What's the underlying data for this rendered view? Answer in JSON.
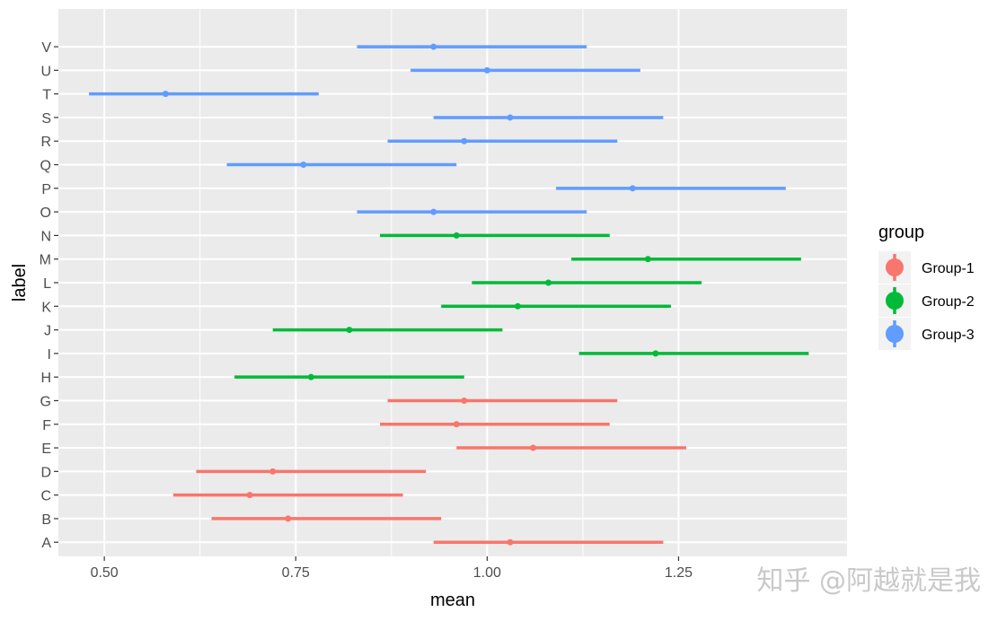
{
  "chart_data": {
    "type": "errorbar",
    "xlabel": "mean",
    "ylabel": "label",
    "xlim": [
      0.44,
      1.47
    ],
    "xticks": [
      0.5,
      0.75,
      1.0,
      1.25
    ],
    "xtick_labels": [
      "0.50",
      "0.75",
      "1.00",
      "1.25"
    ],
    "grid": true,
    "legend": {
      "title": "group",
      "position": "right",
      "entries": [
        {
          "name": "Group-1",
          "color": "#F8766D"
        },
        {
          "name": "Group-2",
          "color": "#00BA38"
        },
        {
          "name": "Group-3",
          "color": "#619CFF"
        }
      ]
    },
    "categories": [
      "A",
      "B",
      "C",
      "D",
      "E",
      "F",
      "G",
      "H",
      "I",
      "J",
      "K",
      "L",
      "M",
      "N",
      "O",
      "P",
      "Q",
      "R",
      "S",
      "T",
      "U",
      "V"
    ],
    "points": [
      {
        "label": "A",
        "group": "Group-1",
        "mean": 1.03,
        "lower": 0.93,
        "upper": 1.23
      },
      {
        "label": "B",
        "group": "Group-1",
        "mean": 0.74,
        "lower": 0.64,
        "upper": 0.94
      },
      {
        "label": "C",
        "group": "Group-1",
        "mean": 0.69,
        "lower": 0.59,
        "upper": 0.89
      },
      {
        "label": "D",
        "group": "Group-1",
        "mean": 0.72,
        "lower": 0.62,
        "upper": 0.92
      },
      {
        "label": "E",
        "group": "Group-1",
        "mean": 1.06,
        "lower": 0.96,
        "upper": 1.26
      },
      {
        "label": "F",
        "group": "Group-1",
        "mean": 0.96,
        "lower": 0.86,
        "upper": 1.16
      },
      {
        "label": "G",
        "group": "Group-1",
        "mean": 0.97,
        "lower": 0.87,
        "upper": 1.17
      },
      {
        "label": "H",
        "group": "Group-2",
        "mean": 0.77,
        "lower": 0.67,
        "upper": 0.97
      },
      {
        "label": "I",
        "group": "Group-2",
        "mean": 1.22,
        "lower": 1.12,
        "upper": 1.42
      },
      {
        "label": "J",
        "group": "Group-2",
        "mean": 0.82,
        "lower": 0.72,
        "upper": 1.02
      },
      {
        "label": "K",
        "group": "Group-2",
        "mean": 1.04,
        "lower": 0.94,
        "upper": 1.24
      },
      {
        "label": "L",
        "group": "Group-2",
        "mean": 1.08,
        "lower": 0.98,
        "upper": 1.28
      },
      {
        "label": "M",
        "group": "Group-2",
        "mean": 1.21,
        "lower": 1.11,
        "upper": 1.41
      },
      {
        "label": "N",
        "group": "Group-2",
        "mean": 0.96,
        "lower": 0.86,
        "upper": 1.16
      },
      {
        "label": "O",
        "group": "Group-3",
        "mean": 0.93,
        "lower": 0.83,
        "upper": 1.13
      },
      {
        "label": "P",
        "group": "Group-3",
        "mean": 1.19,
        "lower": 1.09,
        "upper": 1.39
      },
      {
        "label": "Q",
        "group": "Group-3",
        "mean": 0.76,
        "lower": 0.66,
        "upper": 0.96
      },
      {
        "label": "R",
        "group": "Group-3",
        "mean": 0.97,
        "lower": 0.87,
        "upper": 1.17
      },
      {
        "label": "S",
        "group": "Group-3",
        "mean": 1.03,
        "lower": 0.93,
        "upper": 1.23
      },
      {
        "label": "T",
        "group": "Group-3",
        "mean": 0.58,
        "lower": 0.48,
        "upper": 0.78
      },
      {
        "label": "U",
        "group": "Group-3",
        "mean": 1.0,
        "lower": 0.9,
        "upper": 1.2
      },
      {
        "label": "V",
        "group": "Group-3",
        "mean": 0.93,
        "lower": 0.83,
        "upper": 1.13
      }
    ]
  },
  "watermark": {
    "text": "知乎 @阿越就是我"
  }
}
